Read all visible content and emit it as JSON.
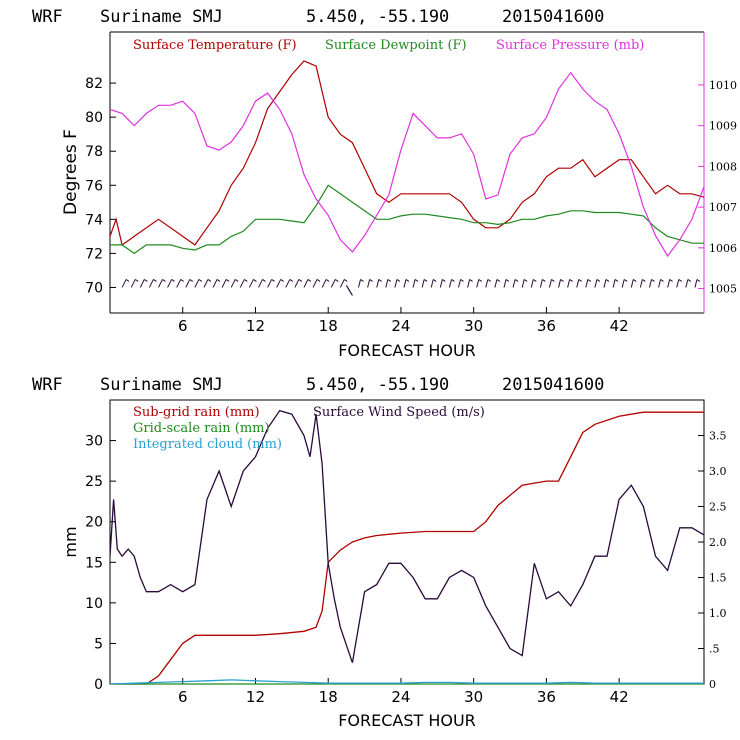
{
  "top": {
    "header": {
      "model": "WRF",
      "location": "Suriname SMJ",
      "coords": "5.450, -55.190",
      "date": "2015041600"
    },
    "ylabel": "Degrees F",
    "xlabel": "FORECAST HOUR",
    "legend": {
      "temp": "Surface Temperature (F)",
      "dew": "Surface Dewpoint (F)",
      "pres": "Surface Pressure (mb)"
    },
    "left_ticks": [
      "70",
      "72",
      "74",
      "76",
      "78",
      "80",
      "82"
    ],
    "right_ticks": [
      "1005",
      "1006",
      "1007",
      "1008",
      "1009",
      "1010"
    ],
    "x_ticks": [
      "6",
      "12",
      "18",
      "24",
      "30",
      "36",
      "42"
    ]
  },
  "bottom": {
    "header": {
      "model": "WRF",
      "location": "Suriname SMJ",
      "coords": "5.450, -55.190",
      "date": "2015041600"
    },
    "ylabel": "mm",
    "xlabel": "FORECAST HOUR",
    "legend": {
      "subgrid": "Sub-grid rain (mm)",
      "wind": "Surface Wind Speed (m/s)",
      "gridscale": "Grid-scale rain (mm)",
      "cloud": "Integrated cloud (mm)"
    },
    "left_ticks": [
      "0",
      "5",
      "10",
      "15",
      "20",
      "25",
      "30"
    ],
    "right_ticks": [
      "0",
      ".5",
      "1.0",
      "1.5",
      "2.0",
      "2.5",
      "3.0",
      "3.5"
    ],
    "x_ticks": [
      "6",
      "12",
      "18",
      "24",
      "30",
      "36",
      "42"
    ]
  },
  "colors": {
    "temp": "#b00000",
    "dew": "#1f8a1f",
    "pres": "#e030e0",
    "wind": "#2a0a3a",
    "cloud": "#2aa0d0",
    "axis": "#000000",
    "rightaxis_top": "#e030e0"
  },
  "chart_data": [
    {
      "type": "line",
      "title": "WRF Suriname SMJ 5.450, -55.190 2015041600",
      "xlabel": "FORECAST HOUR",
      "ylabel": "Degrees F",
      "xlim": [
        0,
        49
      ],
      "ylim": [
        68.5,
        85
      ],
      "y2lim": [
        1004.4,
        1011.3
      ],
      "series": [
        {
          "name": "Surface Temperature (F)",
          "axis": "left",
          "x": [
            0,
            0.5,
            1,
            2,
            3,
            4,
            5,
            6,
            7,
            8,
            9,
            10,
            11,
            12,
            13,
            14,
            15,
            16,
            17,
            18,
            19,
            20,
            21,
            22,
            23,
            24,
            25,
            26,
            27,
            28,
            29,
            30,
            31,
            32,
            33,
            34,
            35,
            36,
            37,
            38,
            39,
            40,
            41,
            42,
            43,
            44,
            45,
            46,
            47,
            48,
            49
          ],
          "y": [
            73,
            74,
            72.5,
            73,
            73.5,
            74,
            73.5,
            73,
            72.5,
            73.5,
            74.5,
            76,
            77,
            78.5,
            80.5,
            81.5,
            82.5,
            83.3,
            83,
            80,
            79,
            78.5,
            77,
            75.5,
            75,
            75.5,
            75.5,
            75.5,
            75.5,
            75.5,
            75,
            74,
            73.5,
            73.5,
            74,
            75,
            75.5,
            76.5,
            77,
            77,
            77.5,
            76.5,
            77,
            77.5,
            77.5,
            76.5,
            75.5,
            76,
            75.5,
            75.5,
            75.3
          ]
        },
        {
          "name": "Surface Dewpoint (F)",
          "axis": "left",
          "x": [
            0,
            1,
            2,
            3,
            4,
            5,
            6,
            7,
            8,
            9,
            10,
            11,
            12,
            13,
            14,
            15,
            16,
            17,
            18,
            19,
            20,
            21,
            22,
            23,
            24,
            25,
            26,
            27,
            28,
            29,
            30,
            31,
            32,
            33,
            34,
            35,
            36,
            37,
            38,
            39,
            40,
            41,
            42,
            43,
            44,
            45,
            46,
            47,
            48,
            49
          ],
          "y": [
            72.5,
            72.5,
            72,
            72.5,
            72.5,
            72.5,
            72.3,
            72.2,
            72.5,
            72.5,
            73,
            73.3,
            74,
            74,
            74,
            73.9,
            73.8,
            74.8,
            76,
            75.5,
            75,
            74.5,
            74,
            74,
            74.2,
            74.3,
            74.3,
            74.2,
            74.1,
            74,
            73.8,
            73.8,
            73.7,
            73.8,
            74,
            74,
            74.2,
            74.3,
            74.5,
            74.5,
            74.4,
            74.4,
            74.4,
            74.3,
            74.2,
            73.5,
            73,
            72.8,
            72.6,
            72.6
          ]
        },
        {
          "name": "Surface Pressure (mb)",
          "axis": "right",
          "x": [
            0,
            1,
            2,
            3,
            4,
            5,
            6,
            7,
            8,
            9,
            10,
            11,
            12,
            13,
            14,
            15,
            16,
            17,
            18,
            19,
            20,
            21,
            22,
            23,
            24,
            25,
            26,
            27,
            28,
            29,
            30,
            31,
            32,
            33,
            34,
            35,
            36,
            37,
            38,
            39,
            40,
            41,
            42,
            43,
            44,
            45,
            46,
            47,
            48,
            49
          ],
          "y": [
            1009.4,
            1009.3,
            1009,
            1009.3,
            1009.5,
            1009.5,
            1009.6,
            1009.3,
            1008.5,
            1008.4,
            1008.6,
            1009,
            1009.6,
            1009.8,
            1009.4,
            1008.8,
            1007.8,
            1007.2,
            1006.8,
            1006.2,
            1005.9,
            1006.3,
            1006.8,
            1007.3,
            1008.4,
            1009.3,
            1009,
            1008.7,
            1008.7,
            1008.8,
            1008.3,
            1007.2,
            1007.3,
            1008.3,
            1008.7,
            1008.8,
            1009.2,
            1009.9,
            1010.3,
            1009.9,
            1009.6,
            1009.4,
            1008.8,
            1008,
            1007,
            1006.3,
            1005.8,
            1006.2,
            1006.7,
            1007.5
          ]
        }
      ]
    },
    {
      "type": "line",
      "title": "WRF Suriname SMJ 5.450, -55.190 2015041600",
      "xlabel": "FORECAST HOUR",
      "ylabel": "mm",
      "xlim": [
        0,
        49
      ],
      "ylim": [
        0,
        35
      ],
      "y2lim": [
        0,
        4
      ],
      "series": [
        {
          "name": "Sub-grid rain (mm)",
          "axis": "left",
          "x": [
            0,
            2,
            3,
            4,
            5,
            6,
            7,
            8,
            10,
            12,
            14,
            16,
            17,
            17.5,
            18,
            19,
            20,
            21,
            22,
            24,
            26,
            28,
            30,
            31,
            32,
            34,
            36,
            37,
            38,
            39,
            40,
            42,
            44,
            46,
            48,
            49
          ],
          "y": [
            0,
            0,
            0,
            1,
            3,
            5,
            6,
            6,
            6,
            6,
            6.2,
            6.5,
            7,
            9,
            15,
            16.5,
            17.5,
            18,
            18.3,
            18.6,
            18.8,
            18.8,
            18.8,
            20,
            22,
            24.5,
            25,
            25,
            28,
            31,
            32,
            33,
            33.5,
            33.5,
            33.5,
            33.5
          ]
        },
        {
          "name": "Grid-scale rain (mm)",
          "axis": "left",
          "x": [
            0,
            49
          ],
          "y": [
            0,
            0
          ]
        },
        {
          "name": "Integrated cloud (mm)",
          "axis": "left",
          "x": [
            0,
            2,
            4,
            6,
            8,
            10,
            12,
            14,
            16,
            18,
            20,
            22,
            24,
            26,
            28,
            30,
            32,
            34,
            36,
            38,
            40,
            42,
            44,
            46,
            48,
            49
          ],
          "y": [
            0,
            0.1,
            0.2,
            0.3,
            0.4,
            0.5,
            0.4,
            0.3,
            0.2,
            0.1,
            0.1,
            0.1,
            0.1,
            0.2,
            0.2,
            0.1,
            0.1,
            0.1,
            0.1,
            0.2,
            0.1,
            0.1,
            0.1,
            0.1,
            0.1,
            0.1
          ]
        },
        {
          "name": "Surface Wind Speed (m/s)",
          "axis": "right",
          "x": [
            0,
            0.3,
            0.6,
            1,
            1.5,
            2,
            2.5,
            3,
            4,
            5,
            6,
            7,
            8,
            9,
            10,
            11,
            12,
            13,
            14,
            15,
            16,
            16.5,
            17,
            17.5,
            18,
            18.5,
            19,
            20,
            21,
            22,
            23,
            24,
            25,
            26,
            27,
            28,
            29,
            30,
            31,
            32,
            33,
            34,
            35,
            36,
            37,
            38,
            39,
            40,
            41,
            42,
            43,
            44,
            45,
            46,
            47,
            48,
            49
          ],
          "y": [
            1.8,
            2.6,
            1.9,
            1.8,
            1.9,
            1.8,
            1.5,
            1.3,
            1.3,
            1.4,
            1.3,
            1.4,
            2.6,
            3.0,
            2.5,
            3.0,
            3.2,
            3.6,
            3.85,
            3.8,
            3.5,
            3.2,
            3.8,
            3.1,
            1.7,
            1.2,
            0.8,
            0.3,
            1.3,
            1.4,
            1.7,
            1.7,
            1.5,
            1.2,
            1.2,
            1.5,
            1.6,
            1.5,
            1.1,
            0.8,
            0.5,
            0.4,
            1.7,
            1.2,
            1.3,
            1.1,
            1.4,
            1.8,
            1.8,
            2.6,
            2.8,
            2.5,
            1.8,
            1.6,
            2.2,
            2.2,
            2.1
          ]
        }
      ]
    }
  ]
}
